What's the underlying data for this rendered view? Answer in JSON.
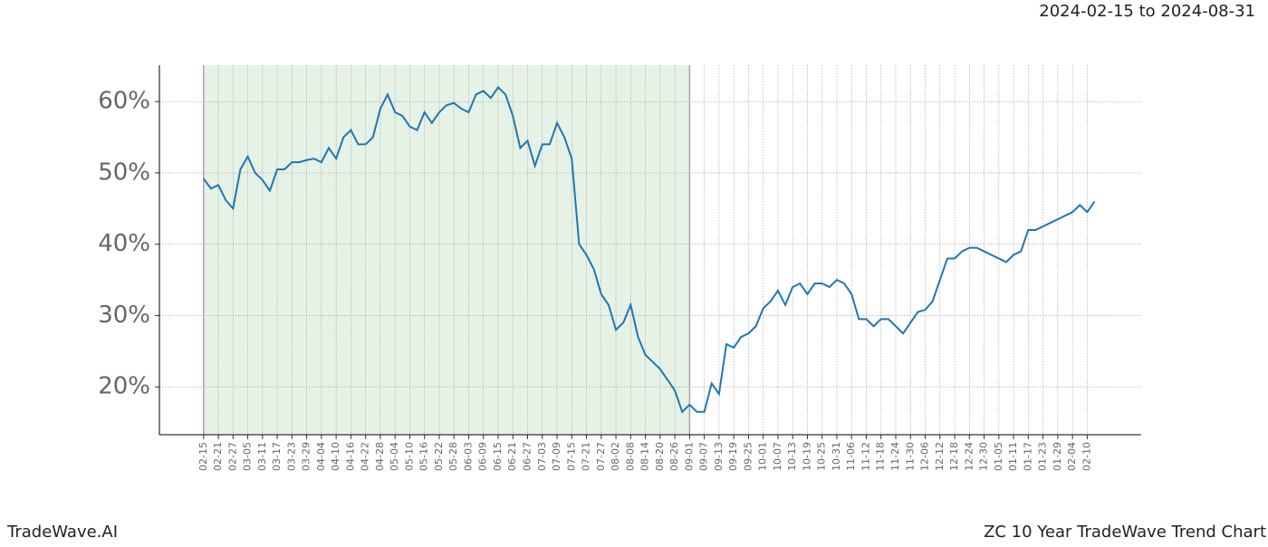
{
  "chart_data": {
    "type": "line",
    "date_range": "2024-02-15 to 2024-08-31",
    "brand": "TradeWave.AI",
    "title": "ZC 10 Year TradeWave Trend Chart",
    "x": [
      0,
      3,
      6,
      9,
      12,
      15,
      18,
      21,
      24,
      27,
      30,
      33,
      36,
      39,
      42,
      45,
      48,
      51,
      54,
      57,
      60,
      63,
      66,
      69,
      72,
      75,
      78,
      81,
      84,
      87,
      90,
      93,
      96,
      99,
      102,
      105,
      108,
      111,
      114,
      117,
      120,
      123,
      126,
      129,
      132,
      135,
      138,
      141,
      144,
      147,
      150,
      153,
      156,
      159,
      162,
      165,
      168,
      171,
      174,
      177,
      180,
      183,
      186,
      189,
      192,
      195,
      198,
      201,
      204,
      207,
      210,
      213,
      216,
      219,
      222,
      225,
      228,
      231,
      234,
      237,
      240,
      243,
      246,
      249,
      252,
      255,
      258,
      261,
      264,
      267,
      270,
      273,
      276,
      279,
      282,
      285,
      288,
      291,
      294,
      297,
      300,
      303,
      306,
      309,
      312,
      315,
      318,
      321,
      324,
      327,
      330,
      333,
      336,
      339,
      342,
      345,
      348,
      351,
      354,
      357,
      360,
      363
    ],
    "series": [
      {
        "color": "#1f77b4",
        "values": [
          49.2,
          47.8,
          48.3,
          46.2,
          45,
          50.5,
          52.3,
          50,
          49,
          47.5,
          50.5,
          50.5,
          51.5,
          51.5,
          51.8,
          52,
          51.5,
          53.5,
          52,
          55,
          56,
          54,
          54,
          55,
          59,
          61,
          58.5,
          58,
          56.5,
          56,
          58.5,
          57,
          58.5,
          59.5,
          59.8,
          59,
          58.5,
          61,
          61.5,
          60.5,
          62,
          61,
          58,
          53.5,
          54.5,
          51,
          54,
          54,
          57,
          55,
          52,
          40,
          38.5,
          36.5,
          33,
          31.5,
          28,
          29,
          31.5,
          27,
          24.5,
          23.5,
          22.5,
          21,
          19.5,
          16.5,
          17.5,
          16.5,
          16.5,
          20.5,
          19,
          26,
          25.5,
          27,
          27.5,
          28.5,
          31,
          32,
          33.5,
          31.5,
          34,
          34.5,
          33,
          34.5,
          34.5,
          34,
          35,
          34.5,
          33,
          29.5,
          29.5,
          28.5,
          29.5,
          29.5,
          28.5,
          27.5,
          29,
          30.5,
          30.8,
          32,
          35,
          38,
          38,
          39,
          39.5,
          39.5,
          39,
          38.5,
          38,
          37.5,
          38.5,
          39,
          42,
          42,
          42.5,
          43,
          43.5,
          44,
          44.5,
          45.5,
          44.5,
          46
        ]
      }
    ],
    "highlight_range": [
      0,
      198
    ],
    "highlight_color": "#e6f2e6",
    "xlim": [
      -18,
      382
    ],
    "ylim": [
      13.3,
      65.1
    ],
    "xticks": [
      {
        "value": 0,
        "label": "02-15"
      },
      {
        "value": 6,
        "label": "02-21"
      },
      {
        "value": 12,
        "label": "02-27"
      },
      {
        "value": 18,
        "label": "03-05"
      },
      {
        "value": 24,
        "label": "03-11"
      },
      {
        "value": 30,
        "label": "03-17"
      },
      {
        "value": 36,
        "label": "03-23"
      },
      {
        "value": 42,
        "label": "03-29"
      },
      {
        "value": 48,
        "label": "04-04"
      },
      {
        "value": 54,
        "label": "04-10"
      },
      {
        "value": 60,
        "label": "04-16"
      },
      {
        "value": 66,
        "label": "04-22"
      },
      {
        "value": 72,
        "label": "04-28"
      },
      {
        "value": 78,
        "label": "05-04"
      },
      {
        "value": 84,
        "label": "05-10"
      },
      {
        "value": 90,
        "label": "05-16"
      },
      {
        "value": 96,
        "label": "05-22"
      },
      {
        "value": 102,
        "label": "05-28"
      },
      {
        "value": 108,
        "label": "06-03"
      },
      {
        "value": 114,
        "label": "06-09"
      },
      {
        "value": 120,
        "label": "06-15"
      },
      {
        "value": 126,
        "label": "06-21"
      },
      {
        "value": 132,
        "label": "06-27"
      },
      {
        "value": 138,
        "label": "07-03"
      },
      {
        "value": 144,
        "label": "07-09"
      },
      {
        "value": 150,
        "label": "07-15"
      },
      {
        "value": 156,
        "label": "07-21"
      },
      {
        "value": 162,
        "label": "07-27"
      },
      {
        "value": 168,
        "label": "08-02"
      },
      {
        "value": 174,
        "label": "08-08"
      },
      {
        "value": 180,
        "label": "08-14"
      },
      {
        "value": 186,
        "label": "08-20"
      },
      {
        "value": 192,
        "label": "08-26"
      },
      {
        "value": 198,
        "label": "09-01"
      },
      {
        "value": 204,
        "label": "09-07"
      },
      {
        "value": 210,
        "label": "09-13"
      },
      {
        "value": 216,
        "label": "09-19"
      },
      {
        "value": 222,
        "label": "09-25"
      },
      {
        "value": 228,
        "label": "10-01"
      },
      {
        "value": 234,
        "label": "10-07"
      },
      {
        "value": 240,
        "label": "10-13"
      },
      {
        "value": 246,
        "label": "10-19"
      },
      {
        "value": 252,
        "label": "10-25"
      },
      {
        "value": 258,
        "label": "10-31"
      },
      {
        "value": 264,
        "label": "11-06"
      },
      {
        "value": 270,
        "label": "11-12"
      },
      {
        "value": 276,
        "label": "11-18"
      },
      {
        "value": 282,
        "label": "11-24"
      },
      {
        "value": 288,
        "label": "11-30"
      },
      {
        "value": 294,
        "label": "12-06"
      },
      {
        "value": 300,
        "label": "12-12"
      },
      {
        "value": 306,
        "label": "12-18"
      },
      {
        "value": 312,
        "label": "12-24"
      },
      {
        "value": 318,
        "label": "12-30"
      },
      {
        "value": 324,
        "label": "01-05"
      },
      {
        "value": 330,
        "label": "01-11"
      },
      {
        "value": 336,
        "label": "01-17"
      },
      {
        "value": 342,
        "label": "01-23"
      },
      {
        "value": 348,
        "label": "01-29"
      },
      {
        "value": 354,
        "label": "02-04"
      },
      {
        "value": 360,
        "label": "02-10"
      }
    ],
    "yticks": [
      {
        "value": 20,
        "label": "20%"
      },
      {
        "value": 30,
        "label": "30%"
      },
      {
        "value": 40,
        "label": "40%"
      },
      {
        "value": 50,
        "label": "50%"
      },
      {
        "value": 60,
        "label": "60%"
      }
    ],
    "grid": true
  }
}
